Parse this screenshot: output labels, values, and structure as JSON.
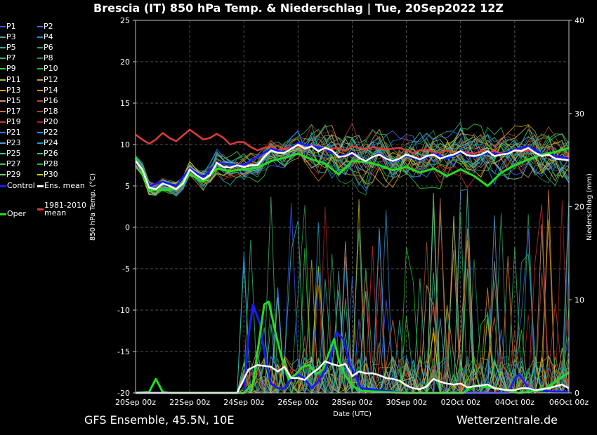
{
  "title": "Brescia  (IT)  850 hPa Temp. & Niederschlag | Tue, 20Sep2022 12Z",
  "footer_left": "GFS Ensemble, 45.5N, 10E",
  "footer_right": "Wetterzentrale.de",
  "colors": {
    "background": "#000000",
    "grid": "#505050",
    "ens_mean": "#ffffff",
    "control": "#1a1aff",
    "oper": "#22dd22",
    "climatology": "#e23a3a"
  },
  "chart_data": {
    "type": "line",
    "title": "Brescia  (IT)  850 hPa Temp. & Niederschlag | Tue, 20Sep2022 12Z",
    "xlabel": "Date (UTC)",
    "ylabel": "850 hPa Temp. (°C)",
    "y2label": "Niederschlag (mm)",
    "xlim_hours": [
      0,
      384
    ],
    "ylim": [
      -20,
      25
    ],
    "y2lim": [
      0,
      40
    ],
    "yticks": [
      "25",
      "20",
      "15",
      "10",
      "5",
      "0",
      "-5",
      "-10",
      "-15",
      "-20"
    ],
    "y2ticks": [
      "40",
      "30",
      "20",
      "10",
      "0"
    ],
    "xticks": [
      "20Sep 00z",
      "22Sep 00z",
      "24Sep 00z",
      "26Sep 00z",
      "28Sep 00z",
      "30Sep 00z",
      "02Oct 00z",
      "04Oct 00z",
      "06Oct 00z"
    ],
    "grid": true,
    "legend_position": "outside-left",
    "legend": [
      {
        "label": "P1",
        "color": "#3355ff"
      },
      {
        "label": "P2",
        "color": "#4169e1"
      },
      {
        "label": "P3",
        "color": "#5f9ea0"
      },
      {
        "label": "P4",
        "color": "#2e8bc0"
      },
      {
        "label": "P5",
        "color": "#20b2aa"
      },
      {
        "label": "P6",
        "color": "#2e9e5b"
      },
      {
        "label": "P7",
        "color": "#3cb371"
      },
      {
        "label": "P8",
        "color": "#2e8b57"
      },
      {
        "label": "P9",
        "color": "#32cd32"
      },
      {
        "label": "P10",
        "color": "#22bb22"
      },
      {
        "label": "P11",
        "color": "#b8b830"
      },
      {
        "label": "P12",
        "color": "#c8a040"
      },
      {
        "label": "P13",
        "color": "#d4a017"
      },
      {
        "label": "P14",
        "color": "#d89030"
      },
      {
        "label": "P15",
        "color": "#c8987a"
      },
      {
        "label": "P16",
        "color": "#a0522d"
      },
      {
        "label": "P17",
        "color": "#d2691e"
      },
      {
        "label": "P18",
        "color": "#b04030"
      },
      {
        "label": "P19",
        "color": "#cc3333"
      },
      {
        "label": "P20",
        "color": "#aa2222"
      },
      {
        "label": "P21",
        "color": "#3a6fd8"
      },
      {
        "label": "P22",
        "color": "#1e90ff"
      },
      {
        "label": "P23",
        "color": "#5a9bd4"
      },
      {
        "label": "P24",
        "color": "#1aa0c0"
      },
      {
        "label": "P25",
        "color": "#40c0a0"
      },
      {
        "label": "P26",
        "color": "#30c080"
      },
      {
        "label": "P27",
        "color": "#50c050"
      },
      {
        "label": "P28",
        "color": "#27ae60"
      },
      {
        "label": "P29",
        "color": "#7ccd7c"
      },
      {
        "label": "P30",
        "color": "#d4d000"
      },
      {
        "label": "Control",
        "color": "#1a1aff"
      },
      {
        "label": "Ens. mean",
        "color": "#ffffff"
      },
      {
        "label": "1981-2010 mean",
        "color": "#e23a3a"
      },
      {
        "label": "Oper",
        "color": "#22dd22"
      }
    ],
    "series": [
      {
        "label": "Ens. mean",
        "axis": "temp",
        "x": [
          0,
          6,
          12,
          18,
          24,
          30,
          36,
          42,
          48,
          54,
          60,
          66,
          72,
          78,
          84,
          90,
          96,
          102,
          108,
          114,
          120,
          126,
          132,
          138,
          144,
          150,
          156,
          162,
          168,
          174,
          180,
          186,
          192,
          198,
          204,
          210,
          216,
          222,
          228,
          234,
          240,
          246,
          252,
          258,
          264,
          270,
          276,
          282,
          288,
          294,
          300,
          306,
          312,
          318,
          324,
          330,
          336,
          342,
          348,
          354,
          360,
          366,
          372,
          378,
          384
        ],
        "y": [
          8.0,
          7.0,
          4.8,
          4.6,
          5.3,
          5.0,
          4.6,
          5.3,
          7.0,
          6.3,
          5.8,
          6.3,
          7.8,
          7.3,
          7.2,
          7.5,
          7.3,
          7.5,
          7.5,
          8.5,
          9.3,
          9.0,
          9.0,
          9.5,
          10.0,
          9.5,
          9.8,
          9.2,
          9.6,
          9.3,
          8.5,
          8.6,
          9.0,
          8.4,
          8.0,
          8.5,
          8.8,
          8.3,
          8.0,
          8.3,
          8.8,
          8.5,
          8.2,
          8.6,
          8.8,
          8.3,
          8.6,
          8.8,
          9.2,
          8.7,
          8.6,
          8.8,
          9.2,
          8.6,
          8.8,
          8.9,
          9.3,
          9.2,
          9.6,
          9.0,
          8.6,
          8.8,
          8.3,
          8.2,
          8.1
        ]
      },
      {
        "label": "Control",
        "axis": "temp",
        "x": [
          0,
          12,
          24,
          36,
          48,
          60,
          72,
          84,
          96,
          108,
          120,
          132,
          144,
          156,
          168,
          180,
          192,
          204,
          216,
          228,
          240,
          252,
          264,
          276,
          288,
          300,
          312,
          324,
          336,
          348,
          360,
          372,
          384
        ],
        "y": [
          8.0,
          5.0,
          5.5,
          5.0,
          7.1,
          6.0,
          7.8,
          7.6,
          7.5,
          8.5,
          9.5,
          9.0,
          10.2,
          9.8,
          9.5,
          8.6,
          8.8,
          8.0,
          8.9,
          7.9,
          8.7,
          8.1,
          8.9,
          8.3,
          9.1,
          8.5,
          9.0,
          8.8,
          9.4,
          9.8,
          8.9,
          8.6,
          8.3
        ]
      },
      {
        "label": "Oper",
        "axis": "temp",
        "x": [
          0,
          12,
          24,
          36,
          48,
          60,
          72,
          84,
          96,
          108,
          120,
          132,
          144,
          156,
          168,
          180,
          192,
          204,
          216,
          228,
          240,
          252,
          264,
          276,
          288,
          300,
          312,
          324,
          336,
          348,
          360,
          372,
          384
        ],
        "y": [
          8.4,
          4.5,
          4.5,
          4.6,
          6.4,
          5.5,
          7.1,
          6.8,
          7.0,
          7.2,
          8.0,
          8.4,
          8.9,
          8.2,
          7.7,
          6.4,
          8.0,
          7.9,
          7.5,
          6.9,
          7.3,
          6.6,
          7.1,
          6.2,
          7.0,
          6.2,
          5.0,
          6.6,
          7.5,
          8.2,
          8.8,
          9.1,
          9.6
        ]
      },
      {
        "label": "1981-2010 mean",
        "axis": "temp",
        "x": [
          0,
          6,
          12,
          18,
          24,
          30,
          36,
          42,
          48,
          54,
          60,
          66,
          72,
          78,
          84,
          90,
          96,
          102,
          108,
          114,
          120,
          126,
          132,
          138,
          144,
          150,
          156,
          162,
          168,
          174,
          180,
          186,
          192,
          198,
          204,
          210,
          216,
          222,
          228,
          234,
          240,
          246,
          252,
          258,
          264,
          270,
          276,
          282,
          288,
          294,
          300,
          306,
          312,
          318,
          324,
          330,
          336,
          342,
          348,
          354,
          360,
          366,
          372,
          378,
          384
        ],
        "y": [
          11.2,
          10.6,
          10.1,
          10.6,
          11.4,
          10.8,
          10.4,
          11.1,
          11.8,
          11.2,
          10.6,
          10.8,
          11.3,
          10.8,
          10.0,
          10.3,
          10.3,
          9.7,
          9.3,
          9.6,
          9.8,
          9.3,
          9.5,
          9.7,
          9.8,
          9.4,
          9.7,
          9.8,
          9.3,
          9.5,
          9.6,
          9.2,
          9.8,
          9.6,
          9.4,
          9.7,
          9.5,
          9.4,
          9.5,
          9.6,
          9.3,
          9.0,
          9.3,
          9.4,
          9.1,
          9.0,
          9.3,
          9.0,
          9.2,
          9.0,
          8.9,
          9.2,
          9.0,
          9.2,
          8.9,
          9.0,
          9.2,
          9.1,
          9.3,
          9.0,
          8.6,
          8.9,
          8.4,
          8.2,
          8.6
        ]
      },
      {
        "label": "Ens. mean",
        "axis": "precip",
        "x": [
          0,
          80,
          90,
          100,
          108,
          114,
          120,
          126,
          132,
          138,
          144,
          150,
          156,
          162,
          168,
          174,
          180,
          186,
          192,
          198,
          204,
          210,
          216,
          222,
          228,
          234,
          240,
          246,
          252,
          258,
          264,
          270,
          276,
          282,
          288,
          294,
          300,
          306,
          312,
          318,
          324,
          330,
          336,
          342,
          348,
          354,
          360,
          366,
          372,
          378,
          384
        ],
        "y": [
          0,
          0,
          0,
          2.5,
          3.0,
          2.9,
          2.8,
          2.3,
          2.8,
          1.6,
          1.6,
          1.4,
          2.1,
          2.6,
          3.4,
          3.1,
          2.9,
          3.1,
          1.8,
          2.3,
          2.1,
          2.1,
          1.9,
          1.6,
          1.5,
          1.3,
          0.8,
          0.5,
          0.4,
          0.7,
          1.5,
          1.2,
          1.0,
          0.9,
          1.0,
          0.6,
          0.7,
          0.8,
          0.9,
          0.5,
          0.4,
          0.3,
          0.3,
          0.5,
          0.5,
          0.3,
          0.4,
          0.5,
          0.7,
          0.9,
          0.5
        ]
      },
      {
        "label": "Control",
        "axis": "precip",
        "x": [
          0,
          80,
          90,
          96,
          100,
          104,
          110,
          116,
          120,
          126,
          132,
          138,
          144,
          150,
          156,
          160,
          166,
          172,
          178,
          184,
          190,
          200,
          240,
          300,
          330,
          336,
          340,
          348,
          360,
          384
        ],
        "y": [
          0,
          0,
          0,
          0,
          6.0,
          9.5,
          7.5,
          3.0,
          1.0,
          0.5,
          0.5,
          1.5,
          2.0,
          1.5,
          0.5,
          1.0,
          2.0,
          3.5,
          6.5,
          5.8,
          3.0,
          0.5,
          0,
          0,
          0,
          1.5,
          2.0,
          0.5,
          0.2,
          0.1
        ]
      },
      {
        "label": "Oper",
        "axis": "precip",
        "x": [
          0,
          12,
          18,
          24,
          30,
          80,
          96,
          104,
          110,
          114,
          118,
          124,
          130,
          136,
          142,
          148,
          154,
          160,
          166,
          172,
          176,
          180,
          186,
          192,
          200,
          240,
          290,
          300,
          320,
          340,
          360,
          370,
          384
        ],
        "y": [
          0,
          0.1,
          1.5,
          0.1,
          0,
          0,
          0,
          1.0,
          6.0,
          9.5,
          9.8,
          6.5,
          3.5,
          1.5,
          2.0,
          2.8,
          3.0,
          2.0,
          2.5,
          4.5,
          5.8,
          3.5,
          1.8,
          0.8,
          0.2,
          0,
          0,
          0.8,
          0.5,
          0,
          0.3,
          1.0,
          2.2
        ]
      }
    ]
  }
}
